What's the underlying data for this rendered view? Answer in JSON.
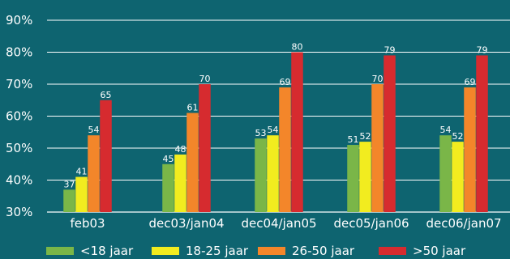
{
  "chart_data": {
    "type": "bar",
    "title": "",
    "xlabel": "",
    "ylabel": "",
    "categories": [
      "feb03",
      "dec03/jan04",
      "dec04/jan05",
      "dec05/jan06",
      "dec06/jan07"
    ],
    "ylim": [
      30,
      90
    ],
    "yticks": [
      30,
      40,
      50,
      60,
      70,
      80,
      90
    ],
    "ytick_labels": [
      "30%",
      "40%",
      "50%",
      "60%",
      "70%",
      "80%",
      "90%"
    ],
    "grid": true,
    "legend_position": "bottom",
    "series": [
      {
        "name": "<18 jaar",
        "color": "#7ab648",
        "values": [
          37,
          45,
          53,
          51,
          54
        ]
      },
      {
        "name": "18-25 jaar",
        "color": "#f2ec1f",
        "values": [
          41,
          48,
          54,
          52,
          52
        ]
      },
      {
        "name": "26-50 jaar",
        "color": "#f3862a",
        "values": [
          54,
          61,
          69,
          70,
          69
        ]
      },
      {
        "name": ">50 jaar",
        "color": "#d62b2f",
        "values": [
          65,
          70,
          80,
          79,
          79
        ]
      }
    ]
  }
}
